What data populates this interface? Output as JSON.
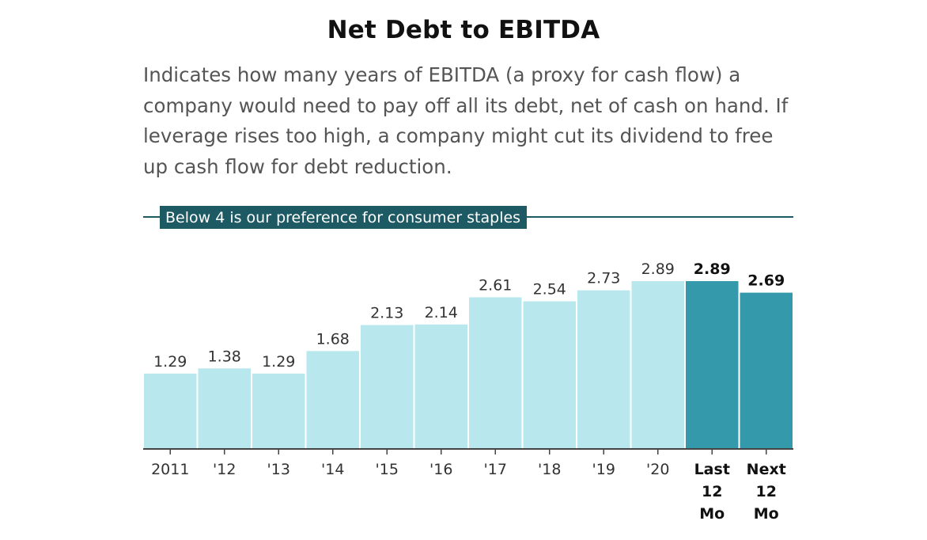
{
  "header": {
    "title": "Net Debt to EBITDA",
    "description": "Indicates how many years of EBITDA (a proxy for cash flow) a company would need to pay off all its debt, net of cash on hand. If leverage rises too high, a company might cut its dividend to free up cash flow for debt reduction."
  },
  "chart_data": {
    "type": "bar",
    "categories": [
      "2011",
      "'12",
      "'13",
      "'14",
      "'15",
      "'16",
      "'17",
      "'18",
      "'19",
      "'20",
      "Last 12 Mo",
      "Next 12 Mo"
    ],
    "values": [
      1.29,
      1.38,
      1.29,
      1.68,
      2.13,
      2.14,
      2.61,
      2.54,
      2.73,
      2.89,
      2.89,
      2.69
    ],
    "highlighted": [
      false,
      false,
      false,
      false,
      false,
      false,
      false,
      false,
      false,
      false,
      true,
      true
    ],
    "colors": {
      "normal": "#b8e8ee",
      "highlight": "#3399ab",
      "reference": "#1e5a63"
    },
    "reference_line": {
      "value": 4,
      "label": "Below 4 is our preference for consumer staples"
    },
    "ylim": [
      0,
      4
    ],
    "xlabel": "",
    "ylabel": "",
    "grid": false,
    "legend": "none"
  }
}
